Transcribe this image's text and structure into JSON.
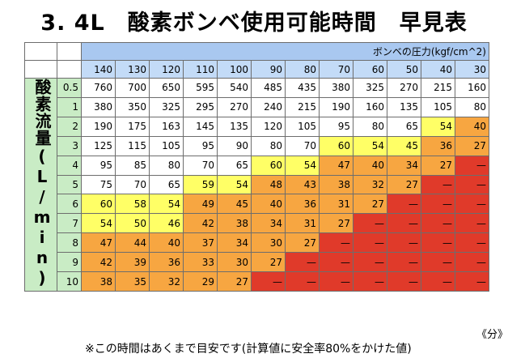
{
  "title": "3. 4L　酸素ボンベ使用可能時間　早見表",
  "pressure_header": "ボンベの圧力(kgf/cm^2)",
  "flow_header": "酸素流量(L/min)",
  "unit_note": "《分》",
  "footnote": "※この時間はあくまで目安です(計算値に安全率80%をかけた値)",
  "colors": {
    "white": "#ffffff",
    "yellow": "#ffff66",
    "orange": "#f7a641",
    "red": "#e03a2a",
    "header_blue": "#a9c8f0",
    "pressure_blue": "#c3dbf7",
    "flow_green": "#c9ecc5"
  },
  "pressures": [
    "140",
    "130",
    "120",
    "110",
    "100",
    "90",
    "80",
    "70",
    "60",
    "50",
    "40",
    "30"
  ],
  "rows": [
    {
      "flow": "0.5",
      "values": [
        "760",
        "700",
        "650",
        "595",
        "540",
        "485",
        "435",
        "380",
        "325",
        "270",
        "215",
        "160"
      ],
      "levels": [
        "w",
        "w",
        "w",
        "w",
        "w",
        "w",
        "w",
        "w",
        "w",
        "w",
        "w",
        "w"
      ]
    },
    {
      "flow": "1",
      "values": [
        "380",
        "350",
        "325",
        "295",
        "270",
        "240",
        "215",
        "190",
        "160",
        "135",
        "105",
        "80"
      ],
      "levels": [
        "w",
        "w",
        "w",
        "w",
        "w",
        "w",
        "w",
        "w",
        "w",
        "w",
        "w",
        "w"
      ]
    },
    {
      "flow": "2",
      "values": [
        "190",
        "175",
        "163",
        "145",
        "135",
        "120",
        "105",
        "95",
        "80",
        "65",
        "54",
        "40"
      ],
      "levels": [
        "w",
        "w",
        "w",
        "w",
        "w",
        "w",
        "w",
        "w",
        "w",
        "w",
        "y",
        "o"
      ]
    },
    {
      "flow": "3",
      "values": [
        "125",
        "115",
        "105",
        "95",
        "90",
        "80",
        "70",
        "60",
        "54",
        "45",
        "36",
        "27"
      ],
      "levels": [
        "w",
        "w",
        "w",
        "w",
        "w",
        "w",
        "w",
        "y",
        "y",
        "y",
        "o",
        "o"
      ]
    },
    {
      "flow": "4",
      "values": [
        "95",
        "85",
        "80",
        "70",
        "65",
        "60",
        "54",
        "47",
        "40",
        "34",
        "27",
        "—"
      ],
      "levels": [
        "w",
        "w",
        "w",
        "w",
        "w",
        "y",
        "y",
        "o",
        "o",
        "o",
        "o",
        "r"
      ]
    },
    {
      "flow": "5",
      "values": [
        "75",
        "70",
        "65",
        "59",
        "54",
        "48",
        "43",
        "38",
        "32",
        "27",
        "—",
        "—"
      ],
      "levels": [
        "w",
        "w",
        "w",
        "y",
        "y",
        "o",
        "o",
        "o",
        "o",
        "o",
        "r",
        "r"
      ]
    },
    {
      "flow": "6",
      "values": [
        "60",
        "58",
        "54",
        "49",
        "45",
        "40",
        "36",
        "31",
        "27",
        "—",
        "—",
        "—"
      ],
      "levels": [
        "y",
        "y",
        "y",
        "o",
        "o",
        "o",
        "o",
        "o",
        "o",
        "r",
        "r",
        "r"
      ]
    },
    {
      "flow": "7",
      "values": [
        "54",
        "50",
        "46",
        "42",
        "38",
        "34",
        "31",
        "27",
        "—",
        "—",
        "—",
        "—"
      ],
      "levels": [
        "y",
        "y",
        "y",
        "o",
        "o",
        "o",
        "o",
        "o",
        "r",
        "r",
        "r",
        "r"
      ]
    },
    {
      "flow": "8",
      "values": [
        "47",
        "44",
        "40",
        "37",
        "34",
        "30",
        "27",
        "—",
        "—",
        "—",
        "—",
        "—"
      ],
      "levels": [
        "o",
        "o",
        "o",
        "o",
        "o",
        "o",
        "o",
        "r",
        "r",
        "r",
        "r",
        "r"
      ]
    },
    {
      "flow": "9",
      "values": [
        "42",
        "39",
        "36",
        "33",
        "30",
        "27",
        "—",
        "—",
        "—",
        "—",
        "—",
        "—"
      ],
      "levels": [
        "o",
        "o",
        "o",
        "o",
        "o",
        "o",
        "r",
        "r",
        "r",
        "r",
        "r",
        "r"
      ]
    },
    {
      "flow": "10",
      "values": [
        "38",
        "35",
        "32",
        "29",
        "27",
        "—",
        "—",
        "—",
        "—",
        "—",
        "—",
        "—"
      ],
      "levels": [
        "o",
        "o",
        "o",
        "o",
        "o",
        "r",
        "r",
        "r",
        "r",
        "r",
        "r",
        "r"
      ]
    }
  ]
}
